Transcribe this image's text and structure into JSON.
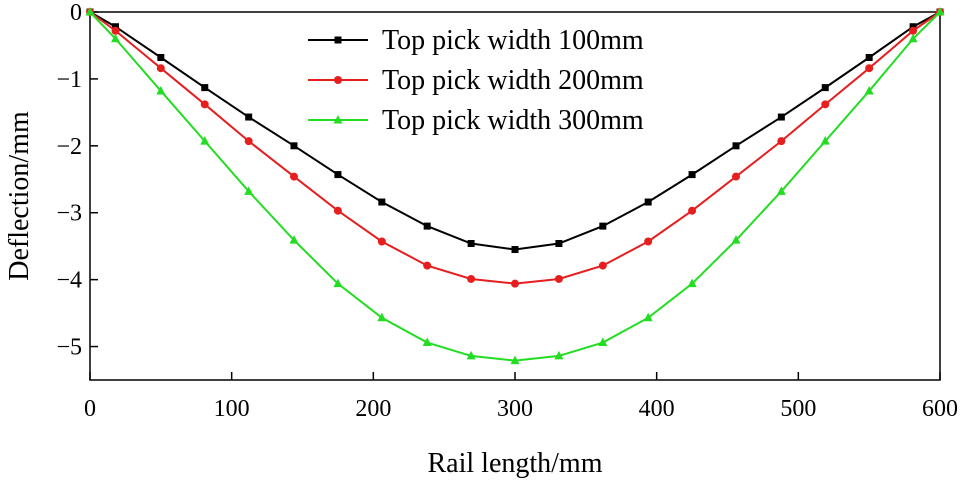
{
  "chart_data": {
    "type": "line",
    "xlabel": "Rail length/mm",
    "ylabel": "Deflection/mm",
    "xlim": [
      0,
      600
    ],
    "ylim": [
      -5.5,
      0
    ],
    "xticks": [
      0,
      100,
      200,
      300,
      400,
      500,
      600
    ],
    "yticks": [
      0,
      -1,
      -2,
      -3,
      -4,
      -5
    ],
    "xtick_labels": [
      "0",
      "100",
      "200",
      "300",
      "400",
      "500",
      "600"
    ],
    "ytick_labels": [
      "0",
      "−1",
      "−2",
      "−3",
      "−4",
      "−5"
    ],
    "grid": false,
    "legend_position": "top-center",
    "x": [
      0,
      18,
      50,
      81,
      112,
      144,
      175,
      206,
      238,
      269,
      300,
      331,
      362,
      394,
      425,
      456,
      488,
      519,
      550,
      581,
      600
    ],
    "series": [
      {
        "name": "Top pick width 100mm",
        "color": "#000000",
        "marker": "square",
        "values": [
          0,
          -0.22,
          -0.68,
          -1.13,
          -1.57,
          -2.0,
          -2.43,
          -2.84,
          -3.2,
          -3.46,
          -3.55,
          -3.46,
          -3.2,
          -2.84,
          -2.43,
          -2.0,
          -1.57,
          -1.13,
          -0.68,
          -0.22,
          0
        ]
      },
      {
        "name": "Top pick width 200mm",
        "color": "#e61e1e",
        "marker": "circle",
        "values": [
          0,
          -0.28,
          -0.84,
          -1.38,
          -1.93,
          -2.46,
          -2.97,
          -3.43,
          -3.79,
          -3.99,
          -4.06,
          -3.99,
          -3.79,
          -3.43,
          -2.97,
          -2.46,
          -1.93,
          -1.38,
          -0.84,
          -0.28,
          0
        ]
      },
      {
        "name": "Top pick width 300mm",
        "color": "#22dd22",
        "marker": "triangle",
        "values": [
          0,
          -0.4,
          -1.18,
          -1.93,
          -2.68,
          -3.41,
          -4.06,
          -4.57,
          -4.94,
          -5.14,
          -5.21,
          -5.14,
          -4.94,
          -4.57,
          -4.06,
          -3.41,
          -2.68,
          -1.93,
          -1.18,
          -0.4,
          0
        ]
      }
    ]
  }
}
